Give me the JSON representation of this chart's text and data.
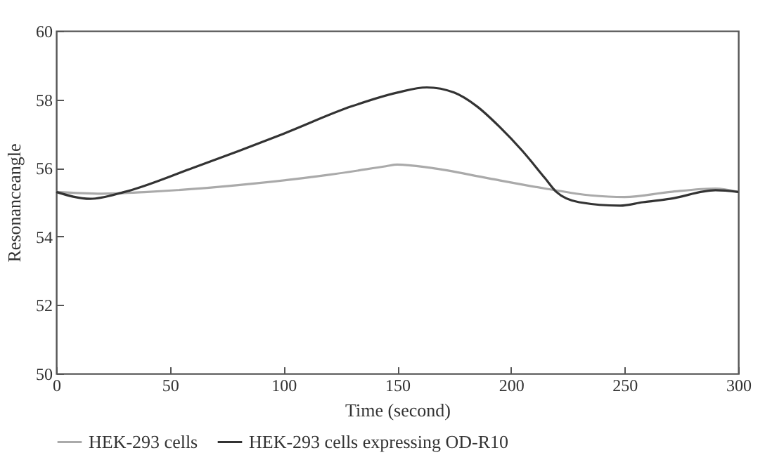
{
  "chart_data": {
    "type": "line",
    "xlabel": "Time (second)",
    "ylabel": "Resonanceangle",
    "xlim": [
      0,
      300
    ],
    "xticks": [
      0,
      50,
      100,
      150,
      200,
      250,
      300
    ],
    "ylim": [
      50,
      60
    ],
    "yticks": [
      50,
      52,
      54,
      56,
      58,
      60
    ],
    "grid": false,
    "legend": "bottom",
    "line_style": "solid",
    "marker": "none",
    "series": [
      {
        "name": "HEK-293 cells",
        "color": "#aaaaaa",
        "x": [
          0,
          20,
          40,
          80,
          120,
          145,
          150,
          165,
          190,
          215,
          235,
          250,
          270,
          290,
          300
        ],
        "values": [
          55.3,
          55.25,
          55.3,
          55.5,
          55.8,
          56.05,
          56.1,
          56.0,
          55.7,
          55.4,
          55.2,
          55.15,
          55.3,
          55.4,
          55.3
        ]
      },
      {
        "name": "HEK-293 cells expressing OD-R10",
        "color": "#333333",
        "x": [
          0,
          15,
          30,
          60,
          100,
          130,
          150,
          163,
          175,
          185,
          195,
          205,
          215,
          220,
          230,
          248,
          258,
          270,
          290,
          300
        ],
        "values": [
          55.3,
          55.1,
          55.3,
          56.0,
          57.0,
          57.8,
          58.2,
          58.35,
          58.2,
          57.8,
          57.2,
          56.5,
          55.7,
          55.3,
          55.0,
          54.9,
          55.0,
          55.1,
          55.35,
          55.3
        ]
      }
    ]
  }
}
